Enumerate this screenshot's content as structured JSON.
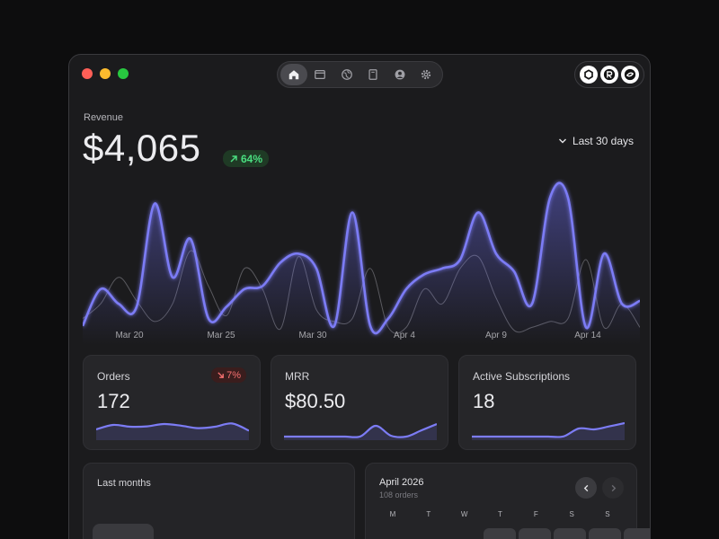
{
  "window": {
    "nav": [
      "home-icon",
      "browser-icon",
      "globe-icon",
      "book-icon",
      "user-icon",
      "gear-icon"
    ],
    "brands": [
      "hexagon-logo",
      "r-logo",
      "swirl-logo"
    ]
  },
  "revenue": {
    "label": "Revenue",
    "value": "$4,065",
    "change": "64%",
    "range": "Last 30 days"
  },
  "chart_data": {
    "type": "line",
    "x_labels": [
      "Mar 20",
      "Mar 25",
      "Mar 30",
      "Apr 4",
      "Apr 9",
      "Apr 14"
    ],
    "series": [
      {
        "color": "#7c7cf5",
        "values": [
          5,
          30,
          20,
          18,
          88,
          38,
          64,
          10,
          18,
          30,
          32,
          48,
          54,
          44,
          5,
          82,
          5,
          10,
          30,
          40,
          44,
          50,
          82,
          54,
          42,
          20,
          92,
          92,
          4,
          54,
          20,
          22
        ]
      },
      {
        "color": "#5a5a5f",
        "values": [
          10,
          20,
          38,
          22,
          8,
          20,
          56,
          32,
          12,
          44,
          30,
          3,
          52,
          16,
          8,
          10,
          44,
          4,
          4,
          30,
          20,
          44,
          52,
          24,
          2,
          4,
          8,
          10,
          50,
          4,
          20,
          4
        ]
      }
    ]
  },
  "cards": [
    {
      "title": "Orders",
      "value": "172",
      "badge": "7%",
      "spark": [
        0.45,
        0.7,
        0.6,
        0.62,
        0.75,
        0.66,
        0.52,
        0.6,
        0.78,
        0.38
      ]
    },
    {
      "title": "MRR",
      "value": "$80.50",
      "spark": [
        0.05,
        0.05,
        0.05,
        0.05,
        0.05,
        0.06,
        0.65,
        0.1,
        0.05,
        0.4,
        0.75
      ]
    },
    {
      "title": "Active Subscriptions",
      "value": "18",
      "spark": [
        0.05,
        0.05,
        0.05,
        0.05,
        0.05,
        0.05,
        0.06,
        0.5,
        0.45,
        0.62,
        0.8
      ]
    }
  ],
  "last_months": {
    "title": "Last months"
  },
  "calendar": {
    "title": "April 2026",
    "subtitle": "108 orders",
    "weekdays": [
      "M",
      "T",
      "W",
      "T",
      "F",
      "S",
      "S"
    ]
  }
}
